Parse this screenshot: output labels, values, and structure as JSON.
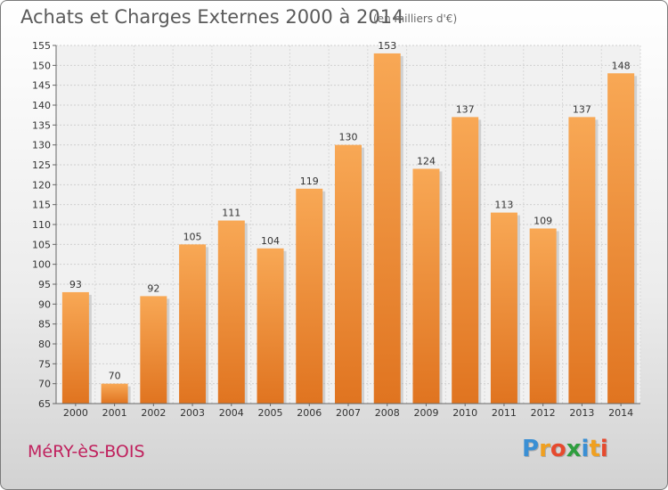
{
  "chart_data": {
    "type": "bar",
    "title": "Achats et Charges Externes 2000 à 2014",
    "subtitle": "(en milliers d'€)",
    "xlabel": "",
    "ylabel": "",
    "categories": [
      "2000",
      "2001",
      "2002",
      "2003",
      "2004",
      "2005",
      "2006",
      "2007",
      "2008",
      "2009",
      "2010",
      "2011",
      "2012",
      "2013",
      "2014"
    ],
    "values": [
      93,
      70,
      92,
      105,
      111,
      104,
      119,
      130,
      153,
      124,
      137,
      113,
      109,
      137,
      148
    ],
    "ylim": [
      65,
      155
    ],
    "yticks": [
      65,
      70,
      75,
      80,
      85,
      90,
      95,
      100,
      105,
      110,
      115,
      120,
      125,
      130,
      135,
      140,
      145,
      150,
      155
    ],
    "grid": true,
    "legend": "none",
    "bar_color_top": "#f8a855",
    "bar_color_bottom": "#e07420"
  },
  "footer": {
    "town": "MéRY-èS-BOIS",
    "logo_letters": [
      {
        "ch": "P",
        "color": "#3a8fd4"
      },
      {
        "ch": "r",
        "color": "#f0a020"
      },
      {
        "ch": "o",
        "color": "#e64a2e"
      },
      {
        "ch": "x",
        "color": "#2e9e3e"
      },
      {
        "ch": "i",
        "color": "#3a8fd4"
      },
      {
        "ch": "t",
        "color": "#f0a020"
      },
      {
        "ch": "i",
        "color": "#e64a2e"
      }
    ]
  }
}
